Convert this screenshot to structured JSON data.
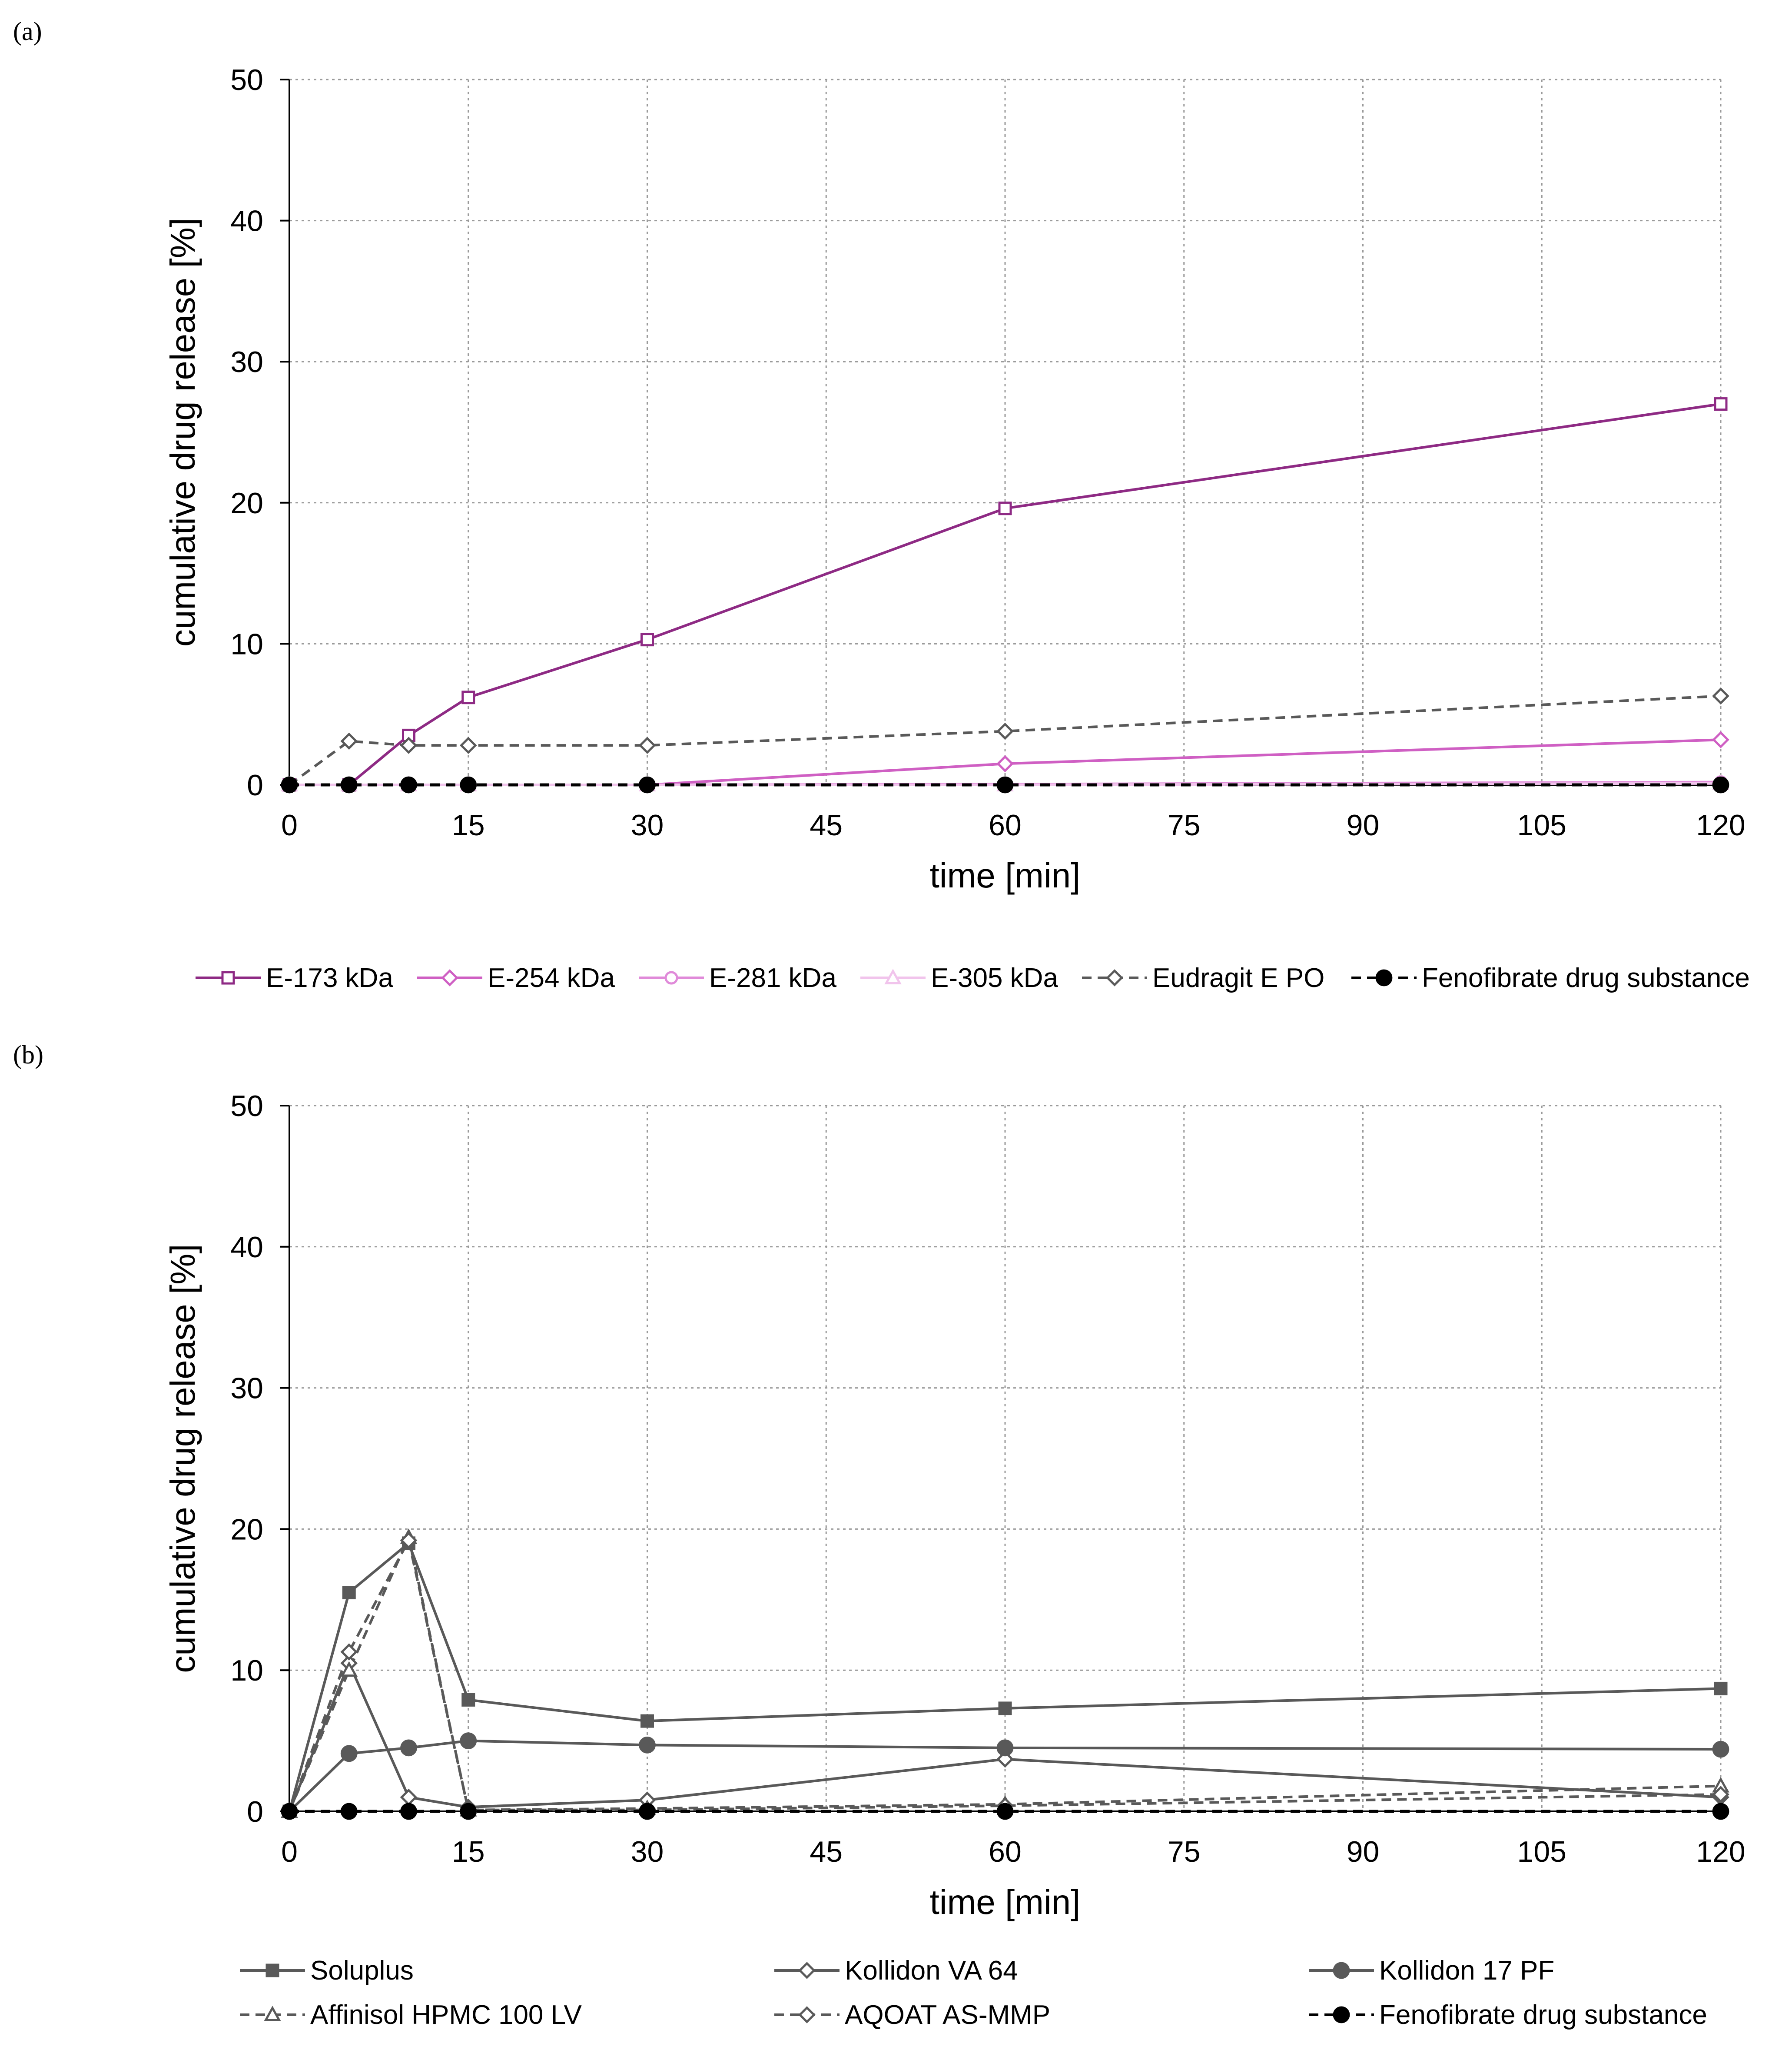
{
  "chart_data": [
    {
      "type": "line",
      "panel_label": "(a)",
      "xlabel": "time [min]",
      "ylabel": "cumulative drug release [%]",
      "xlim": [
        0,
        120
      ],
      "ylim": [
        0,
        50
      ],
      "xticks": [
        0,
        15,
        30,
        45,
        60,
        75,
        90,
        105,
        120
      ],
      "yticks": [
        0,
        10,
        20,
        30,
        40,
        50
      ],
      "grid": true,
      "legend_position": "bottom",
      "series": [
        {
          "name": "E-173 kDa",
          "x": [
            0,
            5,
            10,
            15,
            30,
            60,
            120
          ],
          "values": [
            0,
            0,
            3.5,
            6.2,
            10.3,
            19.6,
            27.0
          ],
          "color": "#8e2a84",
          "marker": "square-open",
          "dash": "solid"
        },
        {
          "name": "E-254 kDa",
          "x": [
            0,
            5,
            10,
            15,
            30,
            60,
            120
          ],
          "values": [
            0,
            0,
            0,
            0,
            0,
            1.5,
            3.2
          ],
          "color": "#cf5fc3",
          "marker": "diamond-open",
          "dash": "solid"
        },
        {
          "name": "E-281 kDa",
          "x": [
            0,
            5,
            10,
            15,
            30,
            60,
            120
          ],
          "values": [
            0,
            0,
            0,
            0,
            0,
            0.05,
            0.2
          ],
          "color": "#e08ad9",
          "marker": "circle-open",
          "dash": "solid"
        },
        {
          "name": "E-305 kDa",
          "x": [
            0,
            5,
            10,
            15,
            30,
            60,
            120
          ],
          "values": [
            0,
            0,
            0,
            0,
            0,
            0,
            0.1
          ],
          "color": "#f1c4ec",
          "marker": "triangle-open",
          "dash": "solid"
        },
        {
          "name": "Eudragit E PO",
          "x": [
            0,
            5,
            10,
            15,
            30,
            60,
            120
          ],
          "values": [
            0,
            3.1,
            2.8,
            2.8,
            2.8,
            3.8,
            6.3
          ],
          "color": "#595959",
          "marker": "diamond-open",
          "dash": "dashed"
        },
        {
          "name": "Fenofibrate drug substance",
          "x": [
            0,
            5,
            10,
            15,
            30,
            60,
            120
          ],
          "values": [
            0,
            0,
            0,
            0,
            0,
            0,
            0
          ],
          "color": "#000000",
          "marker": "circle-filled",
          "dash": "dashed"
        }
      ]
    },
    {
      "type": "line",
      "panel_label": "(b)",
      "xlabel": "time [min]",
      "ylabel": "cumulative drug release [%]",
      "xlim": [
        0,
        120
      ],
      "ylim": [
        0,
        50
      ],
      "xticks": [
        0,
        15,
        30,
        45,
        60,
        75,
        90,
        105,
        120
      ],
      "yticks": [
        0,
        10,
        20,
        30,
        40,
        50
      ],
      "grid": true,
      "legend_position": "bottom",
      "series": [
        {
          "name": "Soluplus",
          "x": [
            0,
            5,
            10,
            15,
            30,
            60,
            120
          ],
          "values": [
            0,
            15.5,
            19.0,
            7.9,
            6.4,
            7.3,
            8.7
          ],
          "color": "#595959",
          "marker": "square-filled",
          "dash": "solid"
        },
        {
          "name": "Kollidon VA 64",
          "x": [
            0,
            5,
            10,
            15,
            30,
            60,
            120
          ],
          "values": [
            0,
            10.5,
            1.0,
            0.3,
            0.8,
            3.7,
            1.0
          ],
          "color": "#595959",
          "marker": "diamond-open",
          "dash": "solid"
        },
        {
          "name": "Kollidon 17 PF",
          "x": [
            0,
            5,
            10,
            15,
            30,
            60,
            120
          ],
          "values": [
            0,
            4.1,
            4.5,
            5.0,
            4.7,
            4.5,
            4.4
          ],
          "color": "#595959",
          "marker": "circle-filled",
          "dash": "solid"
        },
        {
          "name": "Affinisol HPMC 100 LV",
          "x": [
            0,
            5,
            10,
            15,
            30,
            60,
            120
          ],
          "values": [
            0,
            10.0,
            19.4,
            0.1,
            0.2,
            0.5,
            1.8
          ],
          "color": "#595959",
          "marker": "triangle-open",
          "dash": "dashed"
        },
        {
          "name": "AQOAT AS-MMP",
          "x": [
            0,
            5,
            10,
            15,
            30,
            60,
            120
          ],
          "values": [
            0,
            11.3,
            19.2,
            0.1,
            0.1,
            0.4,
            1.2
          ],
          "color": "#595959",
          "marker": "diamond-open",
          "dash": "dashed"
        },
        {
          "name": "Fenofibrate drug substance",
          "x": [
            0,
            5,
            10,
            15,
            30,
            60,
            120
          ],
          "values": [
            0,
            0,
            0,
            0,
            0,
            0,
            0
          ],
          "color": "#000000",
          "marker": "circle-filled",
          "dash": "dashed"
        }
      ]
    }
  ]
}
